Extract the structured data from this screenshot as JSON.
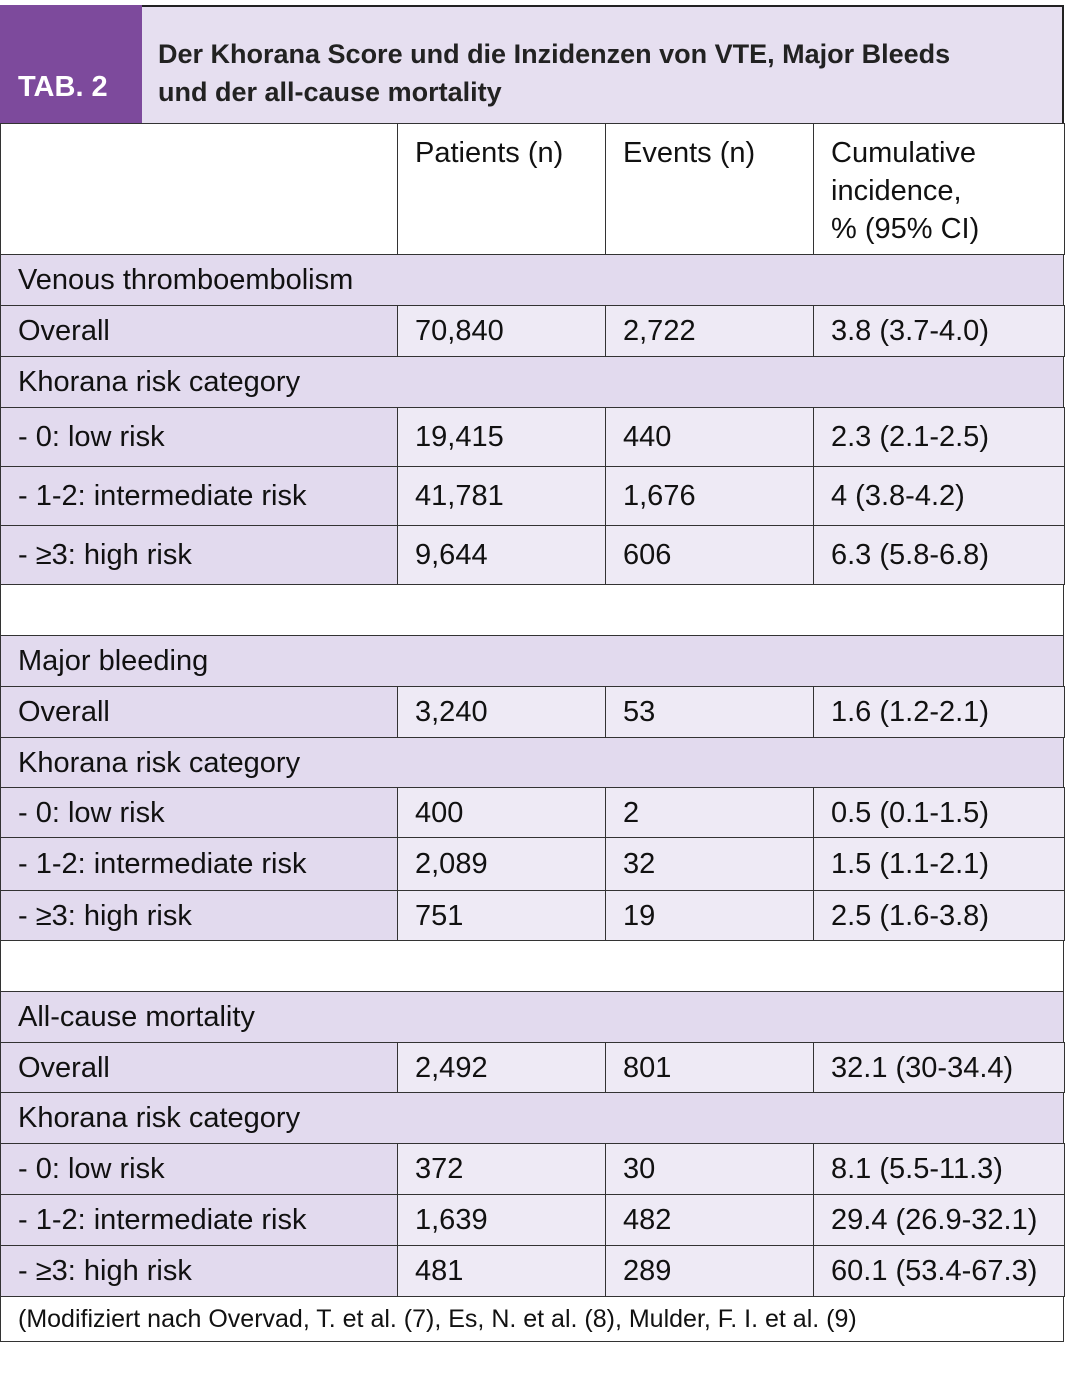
{
  "header": {
    "label": "TAB. 2",
    "title_lines": [
      "Der Khorana Score und die Inzidenzen von VTE, Major Bleeds",
      "und der all-cause mortality"
    ]
  },
  "table": {
    "columns": [
      "Patients (n)",
      "Events (n)",
      "Cumulative\nincidence,\n% (95% CI)"
    ],
    "rows": [
      [
        "Venous thromboembolism"
      ],
      [
        "Overall",
        "70,840",
        "2,722",
        "3.8 (3.7-4.0)"
      ],
      [
        "Khorana risk category"
      ],
      [
        "- 0: low risk",
        "19,415",
        "440",
        "2.3 (2.1-2.5)"
      ],
      [
        "- 1-2: intermediate risk",
        "41,781",
        "1,676",
        "4 (3.8-4.2)"
      ],
      [
        "- ≥3: high risk",
        "9,644",
        "606",
        "6.3 (5.8-6.8)"
      ],
      [],
      [
        "Major bleeding"
      ],
      [
        "Overall",
        "3,240",
        "53",
        "1.6 (1.2-2.1)"
      ],
      [
        "Khorana risk category"
      ],
      [
        "- 0: low risk",
        "400",
        "2",
        "0.5 (0.1-1.5)"
      ],
      [
        "- 1-2: intermediate risk",
        "2,089",
        "32",
        "1.5 (1.1-2.1)"
      ],
      [
        "- ≥3: high risk",
        "751",
        "19",
        "2.5 (1.6-3.8)"
      ],
      [],
      [
        "All-cause mortality"
      ],
      [
        "Overall",
        "2,492",
        "801",
        "32.1 (30-34.4)"
      ],
      [
        "Khorana risk category"
      ],
      [
        "- 0: low risk",
        "372",
        "30",
        "8.1 (5.5-11.3)"
      ],
      [
        "- 1-2: intermediate risk",
        "1,639",
        "482",
        "29.4 (26.9-32.1)"
      ],
      [
        "- ≥3: high risk",
        "481",
        "289",
        "60.1 (53.4-67.3)"
      ]
    ],
    "footnote": "(Modifiziert nach Overvad, T. et al. (7), Es, N. et al. (8), Mulder, F. I. et al. (9)"
  }
}
